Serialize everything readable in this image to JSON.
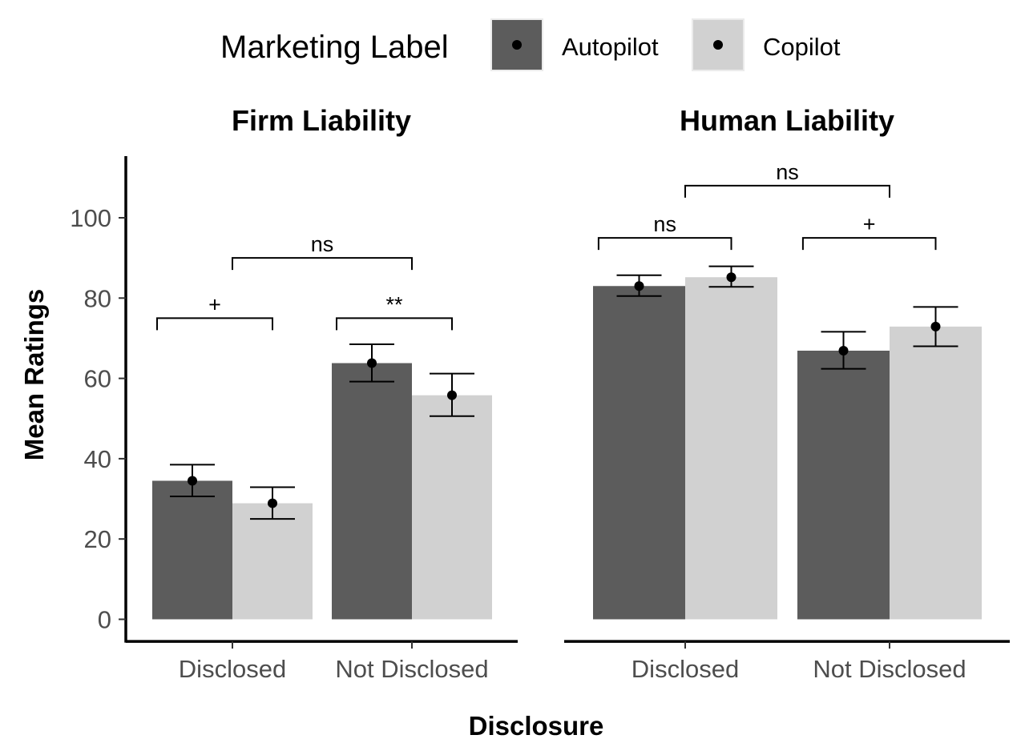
{
  "legend": {
    "title": "Marketing Label",
    "items": [
      {
        "label": "Autopilot",
        "color": "#5c5c5c"
      },
      {
        "label": "Copilot",
        "color": "#d1d1d1"
      }
    ]
  },
  "x_axis_title": "Disclosure",
  "y_axis_title": "Mean Ratings",
  "chart_data": [
    {
      "type": "bar",
      "title": "Firm Liability",
      "xlabel": "Disclosure",
      "ylabel": "Mean Ratings",
      "ylim": [
        -5,
        115
      ],
      "yticks": [
        0,
        20,
        40,
        60,
        80,
        100
      ],
      "show_y_axis": true,
      "categories": [
        "Disclosed",
        "Not Disclosed"
      ],
      "series": [
        {
          "name": "Autopilot",
          "values": [
            34.5,
            63.8
          ],
          "err_low": [
            30.6,
            59.2
          ],
          "err_high": [
            38.5,
            68.5
          ]
        },
        {
          "name": "Copilot",
          "values": [
            28.9,
            55.8
          ],
          "err_low": [
            25.0,
            50.6
          ],
          "err_high": [
            32.9,
            61.2
          ]
        }
      ],
      "within_brackets": [
        {
          "category": 0,
          "label": "+",
          "y": 75
        },
        {
          "category": 1,
          "label": "**",
          "y": 75
        }
      ],
      "between_bracket": {
        "label": "ns",
        "y": 90
      },
      "grid": false,
      "legend_position": "top"
    },
    {
      "type": "bar",
      "title": "Human Liability",
      "xlabel": "Disclosure",
      "ylabel": "Mean Ratings",
      "ylim": [
        -5,
        115
      ],
      "yticks": [
        0,
        20,
        40,
        60,
        80,
        100
      ],
      "show_y_axis": false,
      "categories": [
        "Disclosed",
        "Not Disclosed"
      ],
      "series": [
        {
          "name": "Autopilot",
          "values": [
            83.0,
            66.9
          ],
          "err_low": [
            80.5,
            62.4
          ],
          "err_high": [
            85.7,
            71.6
          ]
        },
        {
          "name": "Copilot",
          "values": [
            85.2,
            72.9
          ],
          "err_low": [
            82.8,
            68.0
          ],
          "err_high": [
            87.9,
            77.8
          ]
        }
      ],
      "within_brackets": [
        {
          "category": 0,
          "label": "ns",
          "y": 95
        },
        {
          "category": 1,
          "label": "+",
          "y": 95
        }
      ],
      "between_bracket": {
        "label": "ns",
        "y": 108
      },
      "grid": false,
      "legend_position": "top"
    }
  ]
}
